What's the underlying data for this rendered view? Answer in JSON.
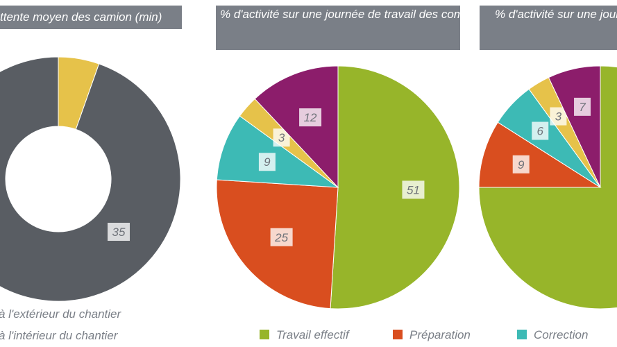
{
  "titles": {
    "chart1": "ttente moyen des camion (min)",
    "chart2": "% d'activité sur une journée de travail des compagnons SANS service de déchargement dédié",
    "chart3": "% d'activité sur une journée de travail des compagnons AV… déchargemen…"
  },
  "legend": {
    "exterieur": "à l'extérieur du chantier",
    "interieur": "à l'intérieur du chantier",
    "travail": "Travail effectif",
    "preparation": "Préparation",
    "correction": "Correction"
  },
  "colors": {
    "travail": "#97b52a",
    "preparation": "#d94e1f",
    "correction": "#3dbab5",
    "extra": "#e6c24a",
    "purple": "#8c1d6b",
    "interieur": "#595d63",
    "title_bg": "#7a7f87"
  },
  "chart_data": [
    {
      "type": "pie",
      "variant": "donut",
      "title": "ttente moyen des camion (min)",
      "series": [
        {
          "name": "à l'extérieur du chantier",
          "value": 2,
          "label": "2"
        },
        {
          "name": "à l'intérieur du chantier",
          "value": 35,
          "label": "35"
        }
      ]
    },
    {
      "type": "pie",
      "title": "% d'activité sur une journée de travail des compagnons SANS service de déchargement dédié",
      "unit": "%",
      "series": [
        {
          "name": "Travail effectif",
          "value": 51,
          "label": "51"
        },
        {
          "name": "Préparation",
          "value": 25,
          "label": "25"
        },
        {
          "name": "Correction",
          "value": 9,
          "label": "9"
        },
        {
          "name": "",
          "value": 3,
          "label": "3"
        },
        {
          "name": "",
          "value": 12,
          "label": "12"
        }
      ]
    },
    {
      "type": "pie",
      "title": "% d'activité sur une journée de travail des compagnons AV… déchargemen…",
      "unit": "%",
      "series": [
        {
          "name": "Travail effectif",
          "value": 75
        },
        {
          "name": "Préparation",
          "value": 9,
          "label": "9"
        },
        {
          "name": "Correction",
          "value": 6,
          "label": "6"
        },
        {
          "name": "",
          "value": 3,
          "label": "3"
        },
        {
          "name": "",
          "value": 7,
          "label": "7"
        }
      ]
    }
  ]
}
